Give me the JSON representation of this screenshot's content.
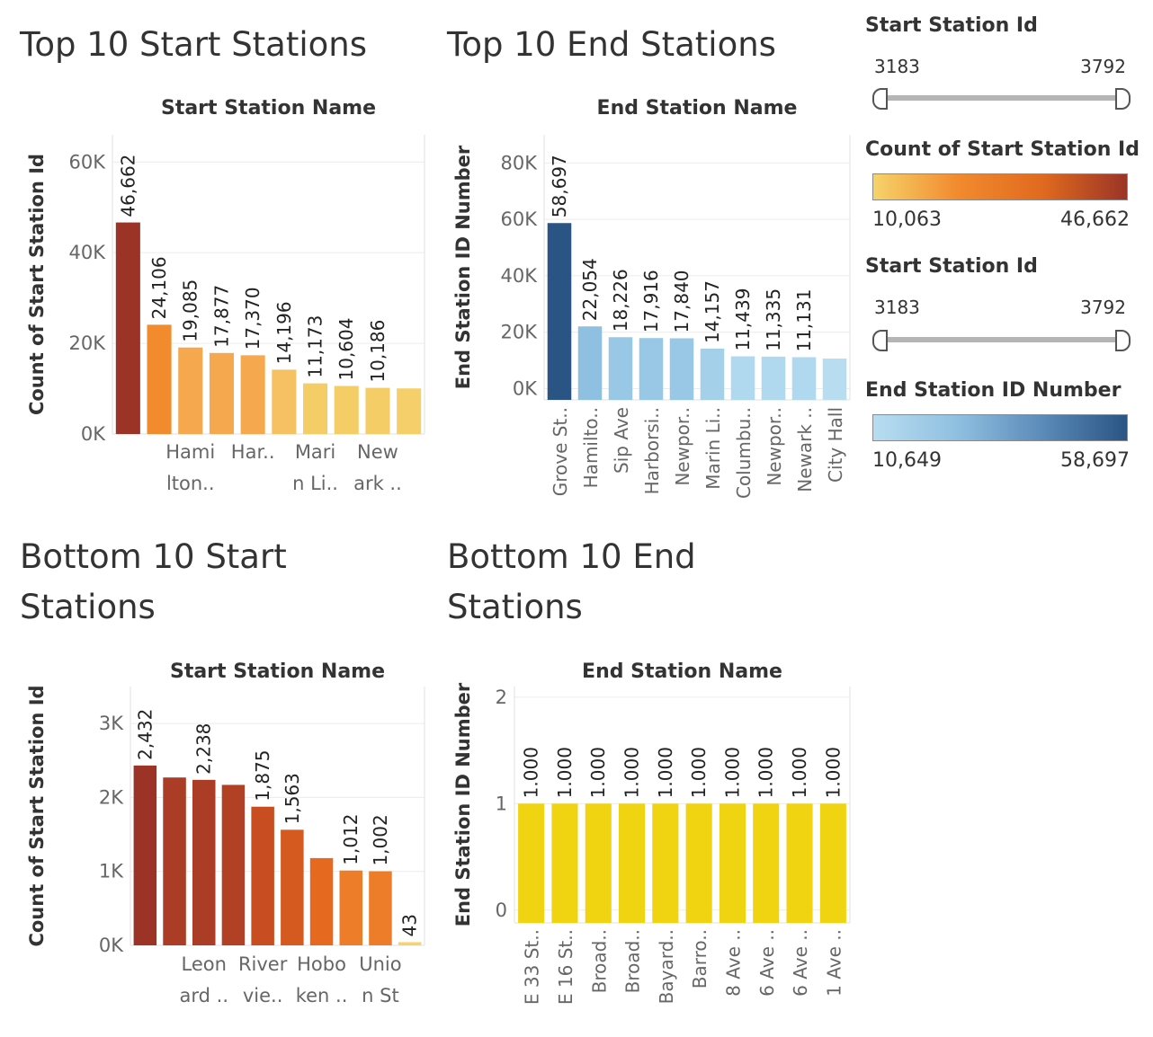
{
  "titles": {
    "top_start": "Top 10 Start Stations",
    "top_end": "Top 10 End Stations",
    "bottom_start_line1": "Bottom 10 Start",
    "bottom_start_line2": "Stations",
    "bottom_end_line1": "Bottom 10 End",
    "bottom_end_line2": "Stations"
  },
  "legend": {
    "filter1": {
      "title": "Start Station Id",
      "min": "3183",
      "max": "3792"
    },
    "color1": {
      "title": "Count of Start Station Id",
      "min": "10,063",
      "max": "46,662",
      "colors": [
        "#f6d36b",
        "#f28a2e",
        "#e06a1f",
        "#9b3427"
      ]
    },
    "filter2": {
      "title": "Start Station Id",
      "min": "3183",
      "max": "3792"
    },
    "color2": {
      "title": "End Station ID Number",
      "min": "10,649",
      "max": "58,697",
      "colors": [
        "#b8ddf1",
        "#8fbfe0",
        "#5b8bb8",
        "#2a5483"
      ]
    }
  },
  "chart_data": [
    {
      "id": "top_start",
      "type": "bar",
      "header": "Start Station Name",
      "ylabel": "Count of Start Station Id",
      "ylim": [
        0,
        66000
      ],
      "yticks": [
        {
          "v": 0,
          "label": "0K"
        },
        {
          "v": 20000,
          "label": "20K"
        },
        {
          "v": 40000,
          "label": "40K"
        },
        {
          "v": 60000,
          "label": "60K"
        }
      ],
      "categories": [
        "",
        "",
        "Hami\nlton..",
        "",
        "Har..",
        "",
        "Mari\nn Li..",
        "",
        "New\nark ..",
        ""
      ],
      "tick_positions": [
        2,
        4,
        6,
        8
      ],
      "values": [
        46662,
        24106,
        19085,
        17877,
        17370,
        14196,
        11173,
        10604,
        10186,
        10063
      ],
      "value_labels": [
        "46,662",
        "24,106",
        "19,085",
        "17,877",
        "17,370",
        "14,196",
        "11,173",
        "10,604",
        "10,186",
        ""
      ],
      "colors": [
        "#9b3427",
        "#f28a2e",
        "#f5a84e",
        "#f5a84e",
        "#f5a84e",
        "#f6c162",
        "#f5cd67",
        "#f5cd67",
        "#f5cd67",
        "#f5d06a"
      ],
      "label_orientation": "horizontal",
      "grid": true
    },
    {
      "id": "top_end",
      "type": "bar",
      "header": "End Station Name",
      "ylabel": "End Station ID Number",
      "ylim": [
        -4000,
        90000
      ],
      "yticks": [
        {
          "v": 0,
          "label": "0K"
        },
        {
          "v": 20000,
          "label": "20K"
        },
        {
          "v": 40000,
          "label": "40K"
        },
        {
          "v": 60000,
          "label": "60K"
        },
        {
          "v": 80000,
          "label": "80K"
        }
      ],
      "categories": [
        "Grove St..",
        "Hamilto..",
        "Sip Ave",
        "Harborsi..",
        "Newpor..",
        "Marin Li..",
        "Columbu..",
        "Newpor..",
        "Newark ..",
        "City Hall"
      ],
      "values": [
        58697,
        22054,
        18226,
        17916,
        17840,
        14157,
        11439,
        11335,
        11131,
        10649
      ],
      "value_labels": [
        "58,697",
        "22,054",
        "18,226",
        "17,916",
        "17,840",
        "14,157",
        "11,439",
        "11,335",
        "11,131",
        ""
      ],
      "colors": [
        "#2a5483",
        "#8fc0e2",
        "#98c8e6",
        "#98c8e6",
        "#98c8e6",
        "#a4d0ea",
        "#b0d8ef",
        "#b0d8ef",
        "#b0d8ef",
        "#b8ddf1"
      ],
      "label_orientation": "vertical",
      "grid": true
    },
    {
      "id": "bottom_start",
      "type": "bar",
      "header": "Start Station Name",
      "ylabel": "Count of Start Station Id",
      "ylim": [
        0,
        3500
      ],
      "yticks": [
        {
          "v": 0,
          "label": "0K"
        },
        {
          "v": 1000,
          "label": "1K"
        },
        {
          "v": 2000,
          "label": "2K"
        },
        {
          "v": 3000,
          "label": "3K"
        }
      ],
      "categories": [
        "",
        "",
        "Leon\nard ..",
        "",
        "River\nvie..",
        "",
        "Hobo\nken ..",
        "",
        "Unio\nn St",
        ""
      ],
      "tick_positions": [
        2,
        4,
        6,
        8
      ],
      "values": [
        2432,
        2270,
        2238,
        2170,
        1875,
        1563,
        1180,
        1012,
        1002,
        43
      ],
      "value_labels": [
        "2,432",
        "",
        "2,238",
        "",
        "1,875",
        "1,563",
        "",
        "1,012",
        "1,002",
        "43"
      ],
      "colors": [
        "#9b3427",
        "#ab3d26",
        "#ab3d26",
        "#b24025",
        "#c84e22",
        "#d55a20",
        "#e5691f",
        "#ee7d2a",
        "#ee7d2a",
        "#f6d36b"
      ],
      "label_orientation": "horizontal",
      "grid": true
    },
    {
      "id": "bottom_end",
      "type": "bar",
      "header": "End Station Name",
      "ylabel": "End Station ID Number",
      "ylim": [
        -0.12,
        2.1
      ],
      "yticks": [
        {
          "v": 0,
          "label": "0"
        },
        {
          "v": 1,
          "label": "1"
        },
        {
          "v": 2,
          "label": "2"
        }
      ],
      "categories": [
        "E 33 St..",
        "E 16 St..",
        "Broad..",
        "Broad..",
        "Bayard..",
        "Barro..",
        "8 Ave ..",
        "6 Ave ..",
        "6 Ave ..",
        "1 Ave .."
      ],
      "values": [
        1,
        1,
        1,
        1,
        1,
        1,
        1,
        1,
        1,
        1
      ],
      "value_labels": [
        "1.000",
        "1.000",
        "1.000",
        "1.000",
        "1.000",
        "1.000",
        "1.000",
        "1.000",
        "1.000",
        "1.000"
      ],
      "colors": [
        "#f0d311",
        "#f0d311",
        "#f0d311",
        "#f0d311",
        "#f0d311",
        "#f0d311",
        "#f0d311",
        "#f0d311",
        "#f0d311",
        "#f0d311"
      ],
      "label_orientation": "vertical",
      "grid": true
    }
  ]
}
